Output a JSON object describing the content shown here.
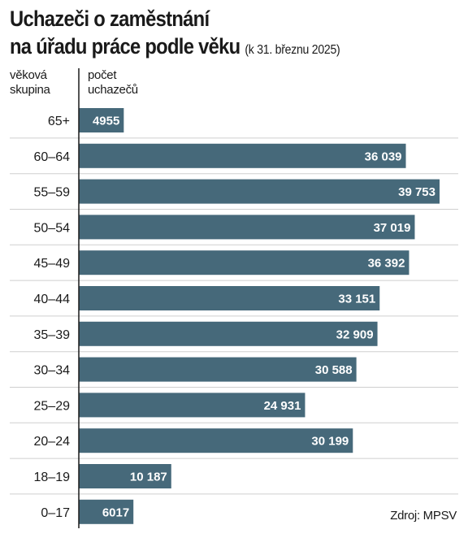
{
  "title_line1": "Uchazeči o zaměstnání",
  "title_line2": "na úřadu práce podle věku",
  "subtitle": "(k 31. březnu 2025)",
  "header_left": [
    "věková",
    "skupina"
  ],
  "header_right": [
    "počet",
    "uchazečů"
  ],
  "source": "Zdroj: MPSV",
  "colors": {
    "bar": "#46697a",
    "label": "#ffffff",
    "divider": "#cfcfcf",
    "axis": "#1a1a1a"
  },
  "chart_data": {
    "type": "bar",
    "orientation": "horizontal",
    "categories": [
      "65+",
      "60–64",
      "55–59",
      "50–54",
      "45–49",
      "40–44",
      "35–39",
      "30–34",
      "25–29",
      "20–24",
      "18–19",
      "0–17"
    ],
    "values": [
      4955,
      36039,
      39753,
      37019,
      36392,
      33151,
      32909,
      30588,
      24931,
      30199,
      10187,
      6017
    ],
    "value_labels": [
      "4955",
      "36 039",
      "39 753",
      "37 019",
      "36 392",
      "33 151",
      "32 909",
      "30 588",
      "24 931",
      "30 199",
      "10 187",
      "6017"
    ],
    "xlabel": "počet uchazečů",
    "ylabel": "věková skupina",
    "xlim": [
      0,
      39753
    ]
  }
}
